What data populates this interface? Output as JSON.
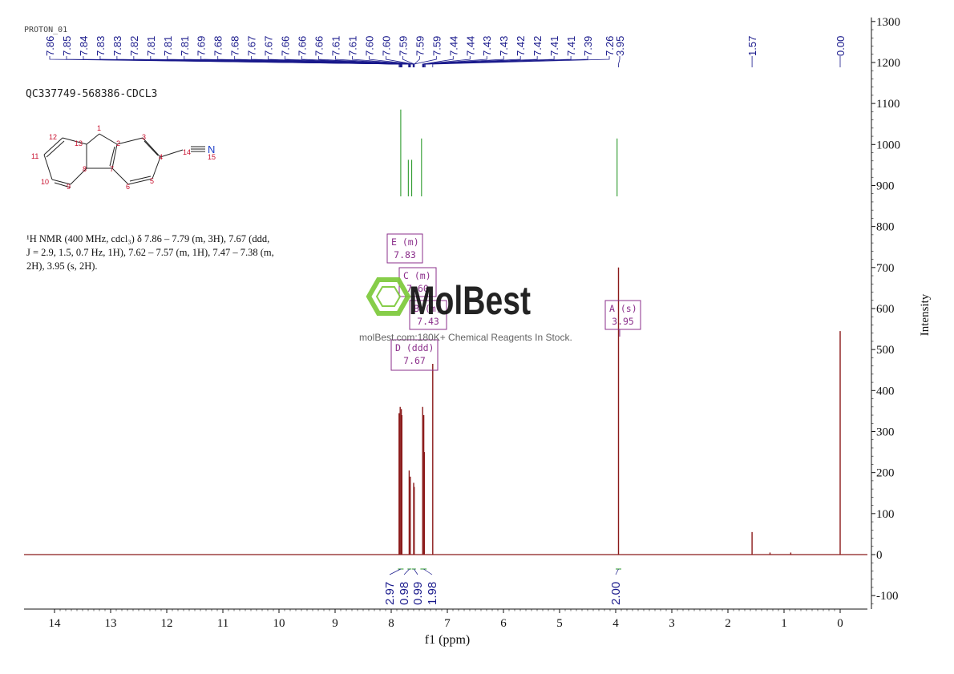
{
  "header": {
    "experiment": "PROTON_01",
    "sample_id": "QC337749-568386-CDCL3"
  },
  "watermark": {
    "brand": "MolBest",
    "tagline": "molBest.com:180K+ Chemical Reagents In Stock."
  },
  "annotation": {
    "line1": "¹H NMR (400 MHz, cdcl₃) δ 7.86 – 7.79 (m, 3H), 7.67 (ddd,",
    "line2": "J = 2.9, 1.5, 0.7 Hz, 1H), 7.62 – 7.57 (m, 1H), 7.47 – 7.38 (m,",
    "line3": "2H), 3.95 (s, 2H)."
  },
  "structure": {
    "atom_labels": [
      "1",
      "2",
      "3",
      "4",
      "5",
      "6",
      "7",
      "8",
      "9",
      "10",
      "11",
      "12",
      "13",
      "14",
      "15"
    ],
    "hetero": "N",
    "color_labels": "#c8102e",
    "color_bonds": "#222222",
    "color_n": "#1a3cc8"
  },
  "multiplets": [
    {
      "label": "E (m)",
      "shift": "7.83"
    },
    {
      "label": "C (m)",
      "shift": "7.60"
    },
    {
      "label": "B (m)",
      "shift": "7.43"
    },
    {
      "label": "D (ddd)",
      "shift": "7.67"
    },
    {
      "label": "A (s)",
      "shift": "3.95"
    }
  ],
  "colors": {
    "spectrum": "#8b1a1a",
    "peak_labels": "#1a1a8c",
    "integral_curve": "#2e9a2e",
    "multiplet_box": "#8b2f8b",
    "watermark_green": "#7cc93a"
  },
  "chart_data": {
    "type": "line",
    "title": "",
    "xlabel": "f1 (ppm)",
    "ylabel": "Intensity",
    "x_reversed": true,
    "xlim": [
      14.5,
      -0.5
    ],
    "ylim": [
      -130,
      1300
    ],
    "x_ticks": [
      "14",
      "13",
      "12",
      "11",
      "10",
      "9",
      "8",
      "7",
      "6",
      "5",
      "4",
      "3",
      "2",
      "1",
      "0"
    ],
    "y_ticks": [
      "1300",
      "1200",
      "1100",
      "1000",
      "900",
      "800",
      "700",
      "600",
      "500",
      "400",
      "300",
      "200",
      "100",
      "0",
      "-100"
    ],
    "peak_labels": [
      "7.86",
      "7.85",
      "7.84",
      "7.83",
      "7.83",
      "7.82",
      "7.81",
      "7.81",
      "7.81",
      "7.69",
      "7.68",
      "7.68",
      "7.67",
      "7.67",
      "7.66",
      "7.66",
      "7.66",
      "7.61",
      "7.61",
      "7.60",
      "7.60",
      "7.59",
      "7.59",
      "7.59",
      "7.44",
      "7.44",
      "7.43",
      "7.43",
      "7.42",
      "7.42",
      "7.41",
      "7.41",
      "7.39",
      "7.26",
      "3.95",
      "1.57",
      "0.00"
    ],
    "peaks": [
      {
        "ppm": 7.86,
        "height": 345
      },
      {
        "ppm": 7.84,
        "height": 360
      },
      {
        "ppm": 7.82,
        "height": 355
      },
      {
        "ppm": 7.81,
        "height": 340
      },
      {
        "ppm": 7.68,
        "height": 205
      },
      {
        "ppm": 7.66,
        "height": 190
      },
      {
        "ppm": 7.6,
        "height": 175
      },
      {
        "ppm": 7.59,
        "height": 165
      },
      {
        "ppm": 7.44,
        "height": 360
      },
      {
        "ppm": 7.42,
        "height": 340
      },
      {
        "ppm": 7.41,
        "height": 250
      },
      {
        "ppm": 7.26,
        "height": 465
      },
      {
        "ppm": 3.95,
        "height": 700
      },
      {
        "ppm": 1.57,
        "height": 55
      },
      {
        "ppm": 1.25,
        "height": 5
      },
      {
        "ppm": 0.88,
        "height": 5
      },
      {
        "ppm": 0.0,
        "height": 545
      }
    ],
    "integrals": [
      {
        "value": "2.97",
        "from": 7.88,
        "to": 7.78
      },
      {
        "value": "0.98",
        "from": 7.71,
        "to": 7.64
      },
      {
        "value": "0.99",
        "from": 7.63,
        "to": 7.56
      },
      {
        "value": "1.98",
        "from": 7.48,
        "to": 7.37
      },
      {
        "value": "2.00",
        "from": 4.0,
        "to": 3.9
      }
    ]
  }
}
